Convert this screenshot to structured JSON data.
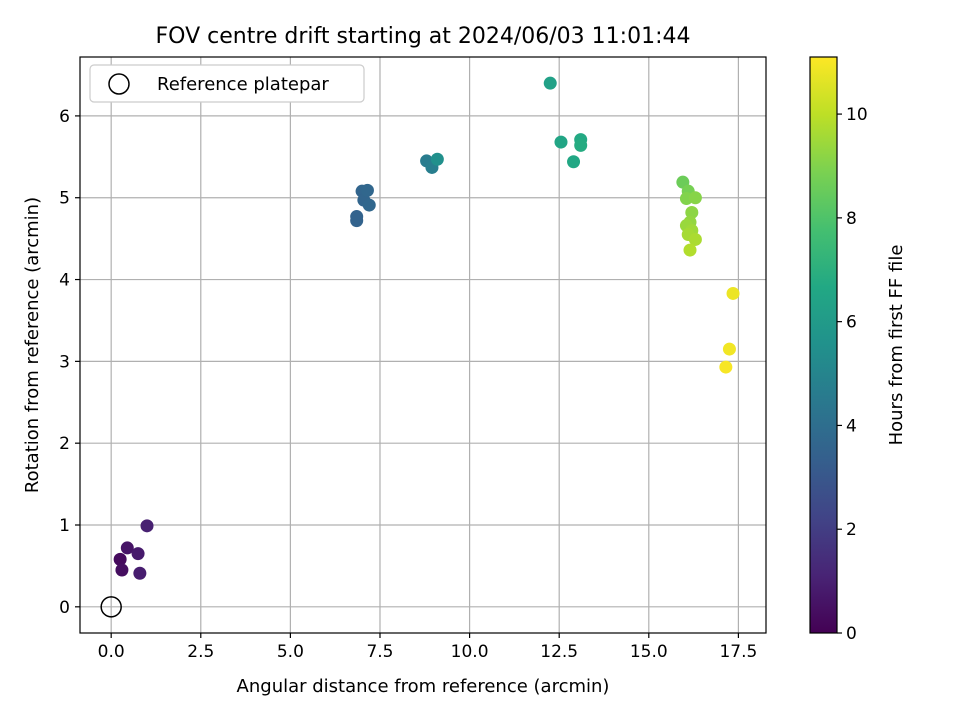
{
  "chart_data": {
    "type": "scatter",
    "title": "FOV centre drift starting at 2024/06/03 11:01:44",
    "xlabel": "Angular distance from reference (arcmin)",
    "ylabel": "Rotation from reference (arcmin)",
    "xlim": [
      -0.87,
      18.27
    ],
    "ylim": [
      -0.32,
      6.72
    ],
    "xticks": [
      0.0,
      2.5,
      5.0,
      7.5,
      10.0,
      12.5,
      15.0,
      17.5
    ],
    "xtick_labels": [
      "0.0",
      "2.5",
      "5.0",
      "7.5",
      "10.0",
      "12.5",
      "15.0",
      "17.5"
    ],
    "yticks": [
      0,
      1,
      2,
      3,
      4,
      5,
      6
    ],
    "ytick_labels": [
      "0",
      "1",
      "2",
      "3",
      "4",
      "5",
      "6"
    ],
    "grid": true,
    "legend": {
      "placement": "top-left",
      "entries": [
        "Reference platepar"
      ]
    },
    "reference_point": {
      "name": "Reference platepar",
      "x": 0.0,
      "y": 0.0
    },
    "colorbar": {
      "label": "Hours from first FF file",
      "colormap": "viridis",
      "range": [
        0,
        11.1
      ],
      "ticks": [
        0,
        2,
        4,
        6,
        8,
        10
      ],
      "tick_labels": [
        "0",
        "2",
        "4",
        "6",
        "8",
        "10"
      ]
    },
    "points": [
      {
        "x": 0.25,
        "y": 0.58,
        "c": 0.3
      },
      {
        "x": 0.3,
        "y": 0.45,
        "c": 0.4
      },
      {
        "x": 0.45,
        "y": 0.72,
        "c": 0.6
      },
      {
        "x": 0.75,
        "y": 0.65,
        "c": 0.8
      },
      {
        "x": 0.8,
        "y": 0.41,
        "c": 0.9
      },
      {
        "x": 1.0,
        "y": 0.99,
        "c": 1.0
      },
      {
        "x": 6.85,
        "y": 4.72,
        "c": 3.5
      },
      {
        "x": 6.85,
        "y": 4.77,
        "c": 3.5
      },
      {
        "x": 7.0,
        "y": 5.08,
        "c": 3.6
      },
      {
        "x": 7.05,
        "y": 4.97,
        "c": 3.6
      },
      {
        "x": 7.15,
        "y": 5.09,
        "c": 3.7
      },
      {
        "x": 7.2,
        "y": 4.91,
        "c": 3.7
      },
      {
        "x": 8.8,
        "y": 5.45,
        "c": 4.6
      },
      {
        "x": 8.95,
        "y": 5.37,
        "c": 4.7
      },
      {
        "x": 9.1,
        "y": 5.47,
        "c": 5.5
      },
      {
        "x": 12.25,
        "y": 6.4,
        "c": 6.3
      },
      {
        "x": 12.55,
        "y": 5.68,
        "c": 6.5
      },
      {
        "x": 12.9,
        "y": 5.44,
        "c": 6.6
      },
      {
        "x": 13.1,
        "y": 5.71,
        "c": 6.7
      },
      {
        "x": 13.1,
        "y": 5.64,
        "c": 6.8
      },
      {
        "x": 15.95,
        "y": 5.19,
        "c": 8.6
      },
      {
        "x": 16.1,
        "y": 5.08,
        "c": 8.8
      },
      {
        "x": 16.05,
        "y": 4.99,
        "c": 9.0
      },
      {
        "x": 16.3,
        "y": 5.0,
        "c": 9.1
      },
      {
        "x": 16.2,
        "y": 4.82,
        "c": 9.2
      },
      {
        "x": 16.15,
        "y": 4.7,
        "c": 9.3
      },
      {
        "x": 16.05,
        "y": 4.66,
        "c": 9.4
      },
      {
        "x": 16.2,
        "y": 4.6,
        "c": 9.5
      },
      {
        "x": 16.1,
        "y": 4.55,
        "c": 9.6
      },
      {
        "x": 16.3,
        "y": 4.49,
        "c": 9.7
      },
      {
        "x": 16.15,
        "y": 4.36,
        "c": 9.8
      },
      {
        "x": 17.35,
        "y": 3.83,
        "c": 10.8
      },
      {
        "x": 17.25,
        "y": 3.15,
        "c": 10.9
      },
      {
        "x": 17.15,
        "y": 2.93,
        "c": 11.0
      }
    ]
  }
}
